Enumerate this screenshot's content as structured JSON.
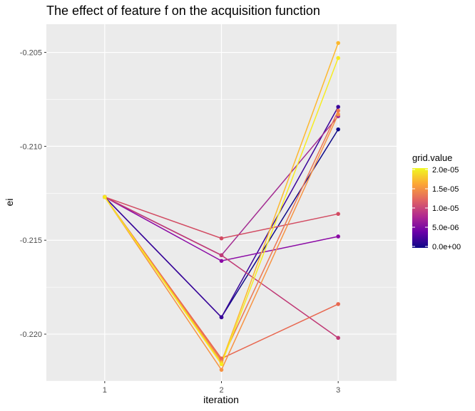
{
  "chart_data": {
    "type": "line",
    "title": "The effect of feature f on the acquisition function",
    "xlabel": "iteration",
    "ylabel": "ei",
    "x": [
      1,
      2,
      3
    ],
    "x_tick_labels": [
      "1",
      "2",
      "3"
    ],
    "xlim": [
      0.5,
      3.5
    ],
    "ylim": [
      -0.2225,
      -0.2035
    ],
    "y_ticks": [
      -0.205,
      -0.21,
      -0.215,
      -0.22
    ],
    "y_tick_labels": [
      "-0.205",
      "-0.210",
      "-0.215",
      "-0.220"
    ],
    "grid": true,
    "legend": {
      "title": "grid.value",
      "placement": "right",
      "type": "colorbar",
      "range": [
        0,
        2e-05
      ],
      "breaks": [
        0,
        5e-06,
        1e-05,
        1.5e-05,
        2e-05
      ],
      "break_labels": [
        "0.0e+00",
        "5.0e-06",
        "1.0e-05",
        "1.5e-05",
        "2.0e-05"
      ],
      "colors": [
        "#0d0887",
        "#6a00a8",
        "#b12a90",
        "#e16462",
        "#fca636",
        "#f0f921"
      ]
    },
    "series": [
      {
        "color": "#0d0887",
        "values": [
          -0.2127,
          -0.2191,
          -0.2091
        ]
      },
      {
        "color": "#3a049a",
        "values": [
          -0.2127,
          -0.2191,
          -0.2079
        ]
      },
      {
        "color": "#8b0aa5",
        "values": [
          -0.2127,
          -0.2161,
          -0.2148
        ]
      },
      {
        "color": "#a32c92",
        "values": [
          -0.2127,
          -0.2158,
          -0.2084
        ]
      },
      {
        "color": "#c03a76",
        "values": [
          -0.2127,
          -0.2158,
          -0.2202
        ]
      },
      {
        "color": "#d24b62",
        "values": [
          -0.2127,
          -0.2149,
          -0.2136
        ]
      },
      {
        "color": "#e8674f",
        "values": [
          -0.2127,
          -0.2213,
          -0.2184
        ]
      },
      {
        "color": "#ec7853",
        "values": [
          -0.2127,
          -0.2214,
          -0.2081
        ]
      },
      {
        "color": "#f79342",
        "values": [
          -0.2127,
          -0.2219,
          -0.2083
        ]
      },
      {
        "color": "#fdb82e",
        "values": [
          -0.2127,
          -0.2215,
          -0.2045
        ]
      },
      {
        "color": "#f6ec21",
        "values": [
          -0.2127,
          -0.2216,
          -0.2053
        ]
      }
    ]
  }
}
